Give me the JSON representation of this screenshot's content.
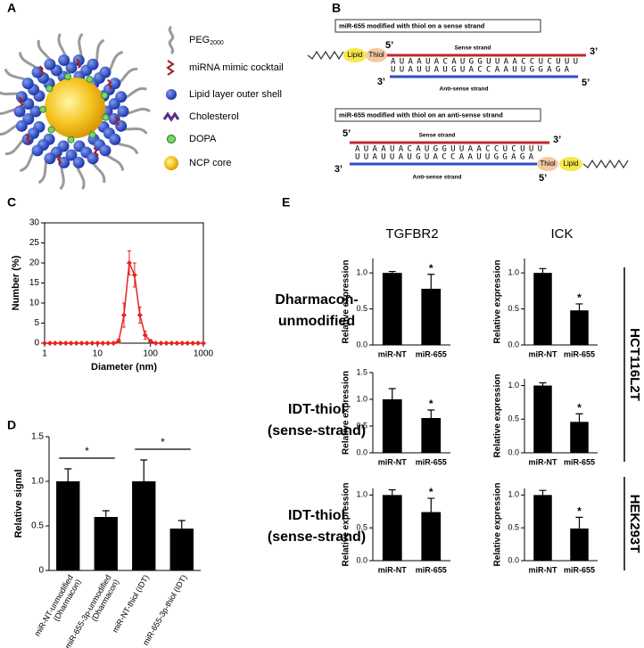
{
  "panel_labels": [
    "A",
    "B",
    "C",
    "D",
    "E"
  ],
  "panel_a": {
    "legend": [
      {
        "label": "PEG",
        "subscript": "2000"
      },
      {
        "label": "miRNA mimic cocktail"
      },
      {
        "label": "Lipid layer outer shell"
      },
      {
        "label": "Cholesterol"
      },
      {
        "label": "DOPA"
      },
      {
        "label": "NCP core"
      }
    ]
  },
  "panel_b": {
    "diagrams": [
      {
        "title": "miR-655 modified with thiol on a sense strand",
        "sense_5": "5’",
        "sense_3": "3’",
        "antisense_3": "3’",
        "antisense_5": "5’",
        "sense_strand": "Sense strand",
        "antisense_strand": "Anti-sense strand",
        "sense_sequence": "AUAAUACAUGGUUAACCUCUUU",
        "antisense_sequence": "UUAUUAUGUACCAAUUGGAGA",
        "lipid": "Lipid",
        "thiol": "Thiol"
      },
      {
        "title": "miR-655 modified with thiol on an anti-sense strand",
        "sense_5": "5’",
        "sense_3": "3’",
        "antisense_3": "3’",
        "antisense_5": "5’",
        "sense_strand": "Sense strand",
        "antisense_strand": "Anti-sense strand",
        "sense_sequence": "AUAAUACAUGGUUAACCUCUUU",
        "antisense_sequence": "UUAUUAUGUACCAAUUGGAGA",
        "lipid": "Lipid",
        "thiol": "Thiol"
      }
    ]
  },
  "panel_e": {
    "columns": [
      "TGFBR2",
      "ICK"
    ],
    "rows": [
      [
        "Dharmacon-",
        "unmodified"
      ],
      [
        "IDT-thiol",
        "(sense-strand)"
      ],
      [
        "IDT-thiol",
        "(sense-strand)"
      ]
    ],
    "cell_lines": [
      "HCT116L2T",
      "HEK293T"
    ]
  },
  "chart_data": [
    {
      "type": "line",
      "log_x": true,
      "color": "#e8231f",
      "x": [
        1,
        1.26,
        1.58,
        2,
        2.51,
        3.16,
        3.98,
        5.01,
        6.31,
        7.94,
        10,
        12.6,
        15.8,
        20,
        25.1,
        31.6,
        39.8,
        50.1,
        63.1,
        79.4,
        100,
        126,
        158,
        200,
        251,
        316,
        398,
        501,
        631,
        794,
        1000
      ],
      "values": [
        0,
        0,
        0,
        0,
        0,
        0,
        0,
        0,
        0,
        0,
        0,
        0,
        0,
        0,
        0.5,
        7,
        20,
        17,
        7,
        2,
        0.5,
        0,
        0,
        0,
        0,
        0,
        0,
        0,
        0,
        0,
        0
      ],
      "errors": [
        0,
        0,
        0,
        0,
        0,
        0,
        0,
        0,
        0,
        0,
        0,
        0,
        0,
        0,
        0.5,
        3,
        3,
        3,
        2,
        1,
        0.3,
        0,
        0,
        0,
        0,
        0,
        0,
        0,
        0,
        0,
        0
      ],
      "xlim": [
        1,
        1000
      ],
      "xticks": [
        1,
        10,
        100,
        1000
      ],
      "ylim": [
        0,
        30
      ],
      "yticks": [
        0,
        5,
        10,
        15,
        20,
        25,
        30
      ],
      "x_label": "Diameter (nm)",
      "y_label": "Number (%)"
    },
    {
      "type": "bar",
      "color": "#000000",
      "categories": [
        [
          "miR-NT-unmodified",
          "(Dharmacon)"
        ],
        [
          "miR-655-3p-unmodified",
          "(Dharmacon)"
        ],
        [
          "miR-NT-thiol (IDT)"
        ],
        [
          "miR-655-3p-thiol (IDT)"
        ]
      ],
      "values": [
        1.0,
        0.6,
        1.0,
        0.47
      ],
      "errors": [
        0.14,
        0.07,
        0.24,
        0.09
      ],
      "ylim": [
        0,
        1.5
      ],
      "yticks": [
        0,
        0.5,
        {
          "value": 1,
          "label": "1.0"
        },
        1.5
      ],
      "y_label": "Relative signal",
      "significance": [
        {
          "text": "*",
          "from": 0,
          "to": 1
        },
        {
          "text": "*",
          "from": 2,
          "to": 3
        }
      ]
    },
    {
      "type": "bar",
      "color": "#000000",
      "categories": [
        "miR-NT",
        "miR-655"
      ],
      "values": [
        1.0,
        0.78
      ],
      "errors": [
        0.02,
        0.2
      ],
      "ylim": [
        0,
        1.2
      ],
      "yticks": [
        {
          "value": 0,
          "label": "0.0"
        },
        0.5,
        {
          "value": 1,
          "label": "1.0"
        }
      ],
      "y_label": "Relative expression",
      "annotations": [
        {
          "category": "miR-655",
          "text": "*"
        }
      ]
    },
    {
      "type": "bar",
      "color": "#000000",
      "categories": [
        "miR-NT",
        "miR-655"
      ],
      "values": [
        1.0,
        0.48
      ],
      "errors": [
        0.06,
        0.09
      ],
      "ylim": [
        0,
        1.2
      ],
      "yticks": [
        {
          "value": 0,
          "label": "0.0"
        },
        0.5,
        {
          "value": 1,
          "label": "1.0"
        }
      ],
      "y_label": "Relative expression",
      "annotations": [
        {
          "category": "miR-655",
          "text": "*"
        }
      ]
    },
    {
      "type": "bar",
      "color": "#000000",
      "categories": [
        "miR-NT",
        "miR-655"
      ],
      "values": [
        1.0,
        0.65
      ],
      "errors": [
        0.2,
        0.15
      ],
      "ylim": [
        0,
        1.5
      ],
      "yticks": [
        {
          "value": 0,
          "label": "0.0"
        },
        0.5,
        {
          "value": 1,
          "label": "1.0"
        },
        1.5
      ],
      "y_label": "Relative expression",
      "annotations": [
        {
          "category": "miR-655",
          "text": "*"
        }
      ]
    },
    {
      "type": "bar",
      "color": "#000000",
      "categories": [
        "miR-NT",
        "miR-655"
      ],
      "values": [
        1.0,
        0.46
      ],
      "errors": [
        0.04,
        0.12
      ],
      "ylim": [
        0,
        1.1
      ],
      "yticks": [
        {
          "value": 0,
          "label": "0.0"
        },
        0.5,
        {
          "value": 1,
          "label": "1.0"
        }
      ],
      "y_label": "Relative expression",
      "annotations": [
        {
          "category": "miR-655",
          "text": "*"
        }
      ]
    },
    {
      "type": "bar",
      "color": "#000000",
      "categories": [
        "miR-NT",
        "miR-655"
      ],
      "values": [
        1.0,
        0.74
      ],
      "errors": [
        0.08,
        0.21
      ],
      "ylim": [
        0,
        1.1
      ],
      "yticks": [
        {
          "value": 0,
          "label": "0.0"
        },
        0.5,
        {
          "value": 1,
          "label": "1.0"
        }
      ],
      "y_label": "Relative expression",
      "annotations": [
        {
          "category": "miR-655",
          "text": "*"
        }
      ]
    },
    {
      "type": "bar",
      "color": "#000000",
      "categories": [
        "miR-NT",
        "miR-655"
      ],
      "values": [
        1.0,
        0.49
      ],
      "errors": [
        0.07,
        0.17
      ],
      "ylim": [
        0,
        1.1
      ],
      "yticks": [
        {
          "value": 0,
          "label": "0.0"
        },
        0.5,
        {
          "value": 1,
          "label": "1.0"
        }
      ],
      "y_label": "Relative expression",
      "annotations": [
        {
          "category": "miR-655",
          "text": "*"
        }
      ]
    }
  ]
}
